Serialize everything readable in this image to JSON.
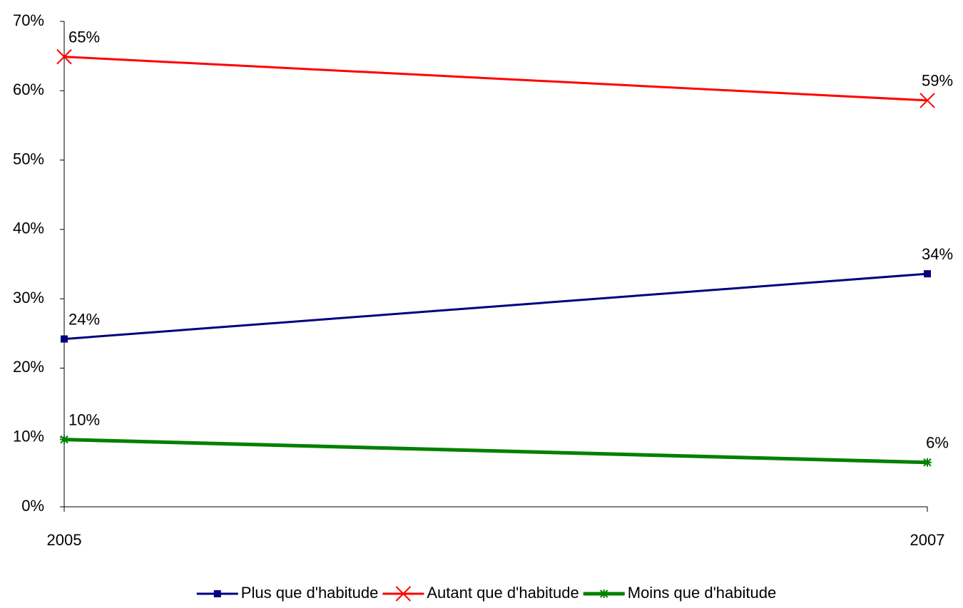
{
  "chart_data": {
    "type": "line",
    "categories": [
      "2005",
      "2007"
    ],
    "series": [
      {
        "name": "Plus que d'habitude",
        "color": "#000080",
        "marker": "square",
        "values": [
          24.2,
          33.6
        ],
        "value_labels": [
          "24%",
          "34%"
        ]
      },
      {
        "name": "Autant que d'habitude",
        "color": "#ff0000",
        "marker": "x",
        "values": [
          64.9,
          58.6
        ],
        "value_labels": [
          "65%",
          "59%"
        ]
      },
      {
        "name": "Moins que d'habitude",
        "color": "#008000",
        "marker": "star",
        "values": [
          9.7,
          6.4
        ],
        "value_labels": [
          "10%",
          "6%"
        ]
      }
    ],
    "ylim": [
      0,
      70
    ],
    "yticks": [
      {
        "value": 0,
        "label": "0%"
      },
      {
        "value": 10,
        "label": "10%"
      },
      {
        "value": 20,
        "label": "20%"
      },
      {
        "value": 30,
        "label": "30%"
      },
      {
        "value": 40,
        "label": "40%"
      },
      {
        "value": 50,
        "label": "50%"
      },
      {
        "value": 60,
        "label": "60%"
      },
      {
        "value": 70,
        "label": "70%"
      }
    ],
    "grid": false,
    "legend": "bottom"
  }
}
